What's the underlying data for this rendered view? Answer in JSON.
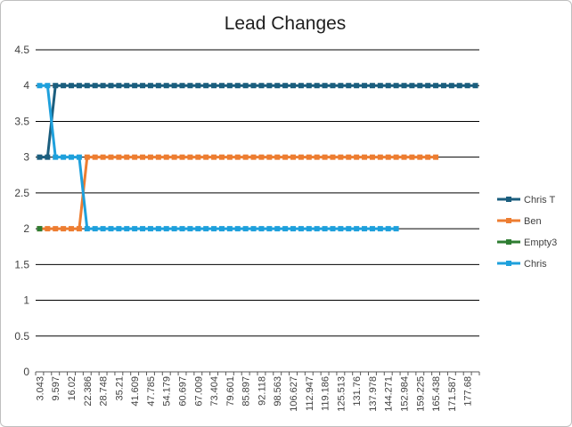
{
  "chart_data": {
    "type": "line",
    "title": "Lead Changes",
    "xlabel": "",
    "ylabel": "",
    "ylim": [
      0,
      4.5
    ],
    "ystep": 0.5,
    "yticks": [
      "0",
      "0.5",
      "1",
      "1.5",
      "2",
      "2.5",
      "3",
      "3.5",
      "4",
      "4.5"
    ],
    "grid": "horizontal",
    "legend_position": "right",
    "x_labels": [
      "3.043",
      "9.597",
      "16.02",
      "22.386",
      "28.748",
      "35.21",
      "41.609",
      "47.785",
      "54.179",
      "60.697",
      "67.009",
      "73.404",
      "79.601",
      "85.897",
      "92.118",
      "98.563",
      "106.627",
      "112.947",
      "119.186",
      "125.513",
      "131.76",
      "137.978",
      "144.271",
      "152.984",
      "159.225",
      "165.438",
      "171.587",
      "177.68"
    ],
    "num_categories": 56,
    "series": [
      {
        "name": "Chris T",
        "color": "#1b5e7e",
        "values": [
          3,
          3,
          4,
          4,
          4,
          4,
          4,
          4,
          4,
          4,
          4,
          4,
          4,
          4,
          4,
          4,
          4,
          4,
          4,
          4,
          4,
          4,
          4,
          4,
          4,
          4,
          4,
          4,
          4,
          4,
          4,
          4,
          4,
          4,
          4,
          4,
          4,
          4,
          4,
          4,
          4,
          4,
          4,
          4,
          4,
          4,
          4,
          4,
          4,
          4,
          4,
          4,
          4,
          4,
          4,
          4
        ]
      },
      {
        "name": "Ben",
        "color": "#ed7d31",
        "values": [
          2,
          2,
          2,
          2,
          2,
          2,
          3,
          3,
          3,
          3,
          3,
          3,
          3,
          3,
          3,
          3,
          3,
          3,
          3,
          3,
          3,
          3,
          3,
          3,
          3,
          3,
          3,
          3,
          3,
          3,
          3,
          3,
          3,
          3,
          3,
          3,
          3,
          3,
          3,
          3,
          3,
          3,
          3,
          3,
          3,
          3,
          3,
          3,
          3,
          3,
          3,
          null,
          null,
          null,
          null,
          null
        ]
      },
      {
        "name": "Empty3",
        "color": "#2e7d32",
        "values": [
          2,
          null,
          null,
          null,
          null,
          null,
          null,
          null,
          null,
          null,
          null,
          null,
          null,
          null,
          null,
          null,
          null,
          null,
          null,
          null,
          null,
          null,
          null,
          null,
          null,
          null,
          null,
          null,
          null,
          null,
          null,
          null,
          null,
          null,
          null,
          null,
          null,
          null,
          null,
          null,
          null,
          null,
          null,
          null,
          null,
          null,
          null,
          null,
          null,
          null,
          null,
          null,
          null,
          null,
          null,
          null
        ]
      },
      {
        "name": "Chris",
        "color": "#1ea0dc",
        "values": [
          4,
          4,
          3,
          3,
          3,
          3,
          2,
          2,
          2,
          2,
          2,
          2,
          2,
          2,
          2,
          2,
          2,
          2,
          2,
          2,
          2,
          2,
          2,
          2,
          2,
          2,
          2,
          2,
          2,
          2,
          2,
          2,
          2,
          2,
          2,
          2,
          2,
          2,
          2,
          2,
          2,
          2,
          2,
          2,
          2,
          2,
          null,
          null,
          null,
          null,
          null,
          null,
          null,
          null,
          null,
          null
        ]
      }
    ]
  }
}
